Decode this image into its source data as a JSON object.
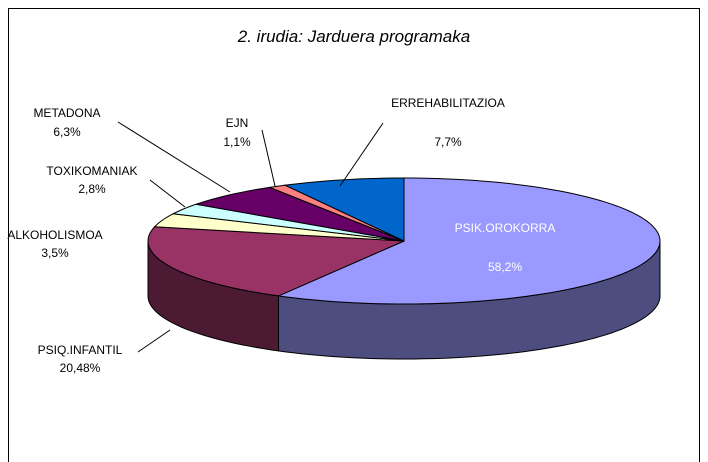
{
  "chart_data": {
    "type": "pie3d",
    "title": "2. irudia: Jarduera programaka",
    "categories": [
      "PSIK.OROKORRA",
      "PSIQ.INFANTIL",
      "ALKOHOLISMOA",
      "TOXIKOMANIAK",
      "METADONA",
      "EJN",
      "ERREHABILITAZIOA"
    ],
    "values": [
      58.2,
      20.48,
      3.5,
      2.8,
      6.3,
      1.1,
      7.7
    ],
    "value_labels": [
      "58,2%",
      "20,48%",
      "3,5%",
      "2,8%",
      "6,3%",
      "1,1%",
      "7,7%"
    ],
    "colors": [
      "#9999ff",
      "#993366",
      "#ffffcc",
      "#ccffff",
      "#660066",
      "#ff8080",
      "#0066cc"
    ]
  }
}
